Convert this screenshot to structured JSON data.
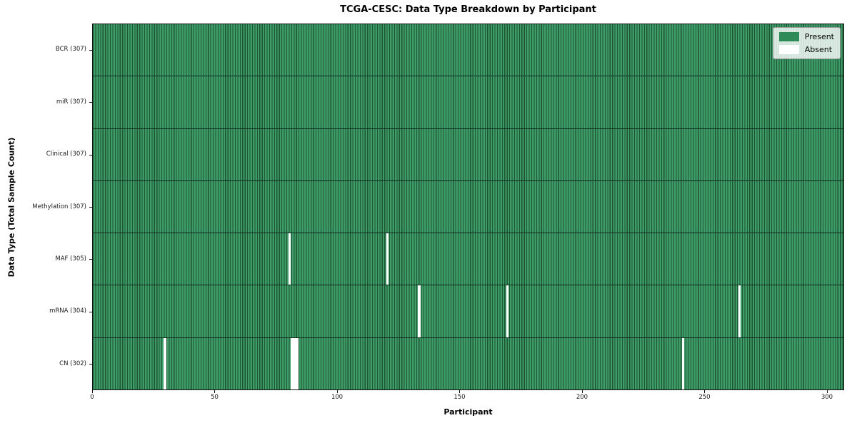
{
  "chart_data": {
    "type": "heatmap",
    "subtype": "presence-absence-matrix",
    "title": "TCGA-CESC: Data Type Breakdown by Participant",
    "xlabel": "Participant",
    "ylabel": "Data Type (Total Sample Count)",
    "n_participants": 307,
    "xlim": [
      0,
      307
    ],
    "x_ticks": [
      0,
      50,
      100,
      150,
      200,
      250,
      300
    ],
    "grid": false,
    "rows": [
      {
        "name": "BCR",
        "label": "BCR (307)",
        "total": 307,
        "absent_participants": []
      },
      {
        "name": "miR",
        "label": "miR (307)",
        "total": 307,
        "absent_participants": []
      },
      {
        "name": "Clinical",
        "label": "Clinical (307)",
        "total": 307,
        "absent_participants": []
      },
      {
        "name": "Methylation",
        "label": "Methylation (307)",
        "total": 307,
        "absent_participants": []
      },
      {
        "name": "MAF",
        "label": "MAF (305)",
        "total": 305,
        "absent_participants": [
          80,
          120
        ]
      },
      {
        "name": "mRNA",
        "label": "mRNA (304)",
        "total": 304,
        "absent_participants": [
          133,
          169,
          264
        ]
      },
      {
        "name": "CN",
        "label": "CN (302)",
        "total": 302,
        "absent_participants": [
          29,
          81,
          82,
          83,
          241
        ]
      }
    ],
    "legend": {
      "position": "upper right",
      "entries": [
        {
          "label": "Present",
          "color": "#2e8b57"
        },
        {
          "label": "Absent",
          "color": "#ffffff"
        }
      ]
    },
    "colors": {
      "present": "#2e8b57",
      "present_light": "#3f9c68",
      "bar_edge": "#1d5434",
      "absent": "#ffffff",
      "spine": "#111111"
    }
  }
}
